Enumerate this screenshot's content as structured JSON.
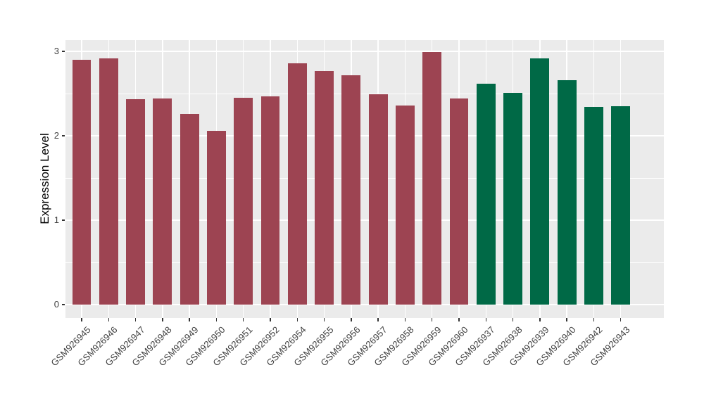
{
  "figure": {
    "background": "#ffffff",
    "panel_background": "#ebebeb",
    "gridline_color": "#ffffff",
    "axis_text_color": "#404040",
    "axis_title_color": "#000000"
  },
  "chart_data": {
    "type": "bar",
    "title": "",
    "xlabel": "",
    "ylabel": "Expression Level",
    "ylim": [
      0,
      3.13
    ],
    "yticks": [
      0,
      1,
      2,
      3
    ],
    "minor_gridlines": [
      0.5,
      1.5,
      2.5
    ],
    "grid": true,
    "legend_position": "none",
    "categories": [
      "GSM926945",
      "GSM926946",
      "GSM926947",
      "GSM926948",
      "GSM926949",
      "GSM926950",
      "GSM926951",
      "GSM926952",
      "GSM926954",
      "GSM926955",
      "GSM926956",
      "GSM926957",
      "GSM926958",
      "GSM926959",
      "GSM926960",
      "GSM926937",
      "GSM926938",
      "GSM926939",
      "GSM926940",
      "GSM926942",
      "GSM926943"
    ],
    "values": [
      2.9,
      2.92,
      2.43,
      2.44,
      2.26,
      2.06,
      2.45,
      2.47,
      2.86,
      2.77,
      2.72,
      2.49,
      2.36,
      2.99,
      2.44,
      2.62,
      2.51,
      2.92,
      2.66,
      2.34,
      2.35
    ],
    "bar_colors": [
      "#9d4452",
      "#9d4452",
      "#9d4452",
      "#9d4452",
      "#9d4452",
      "#9d4452",
      "#9d4452",
      "#9d4452",
      "#9d4452",
      "#9d4452",
      "#9d4452",
      "#9d4452",
      "#9d4452",
      "#9d4452",
      "#9d4452",
      "#006946",
      "#006946",
      "#006946",
      "#006946",
      "#006946",
      "#006946"
    ],
    "accent_colors": {
      "red": "#9d4452",
      "green": "#006946"
    }
  }
}
